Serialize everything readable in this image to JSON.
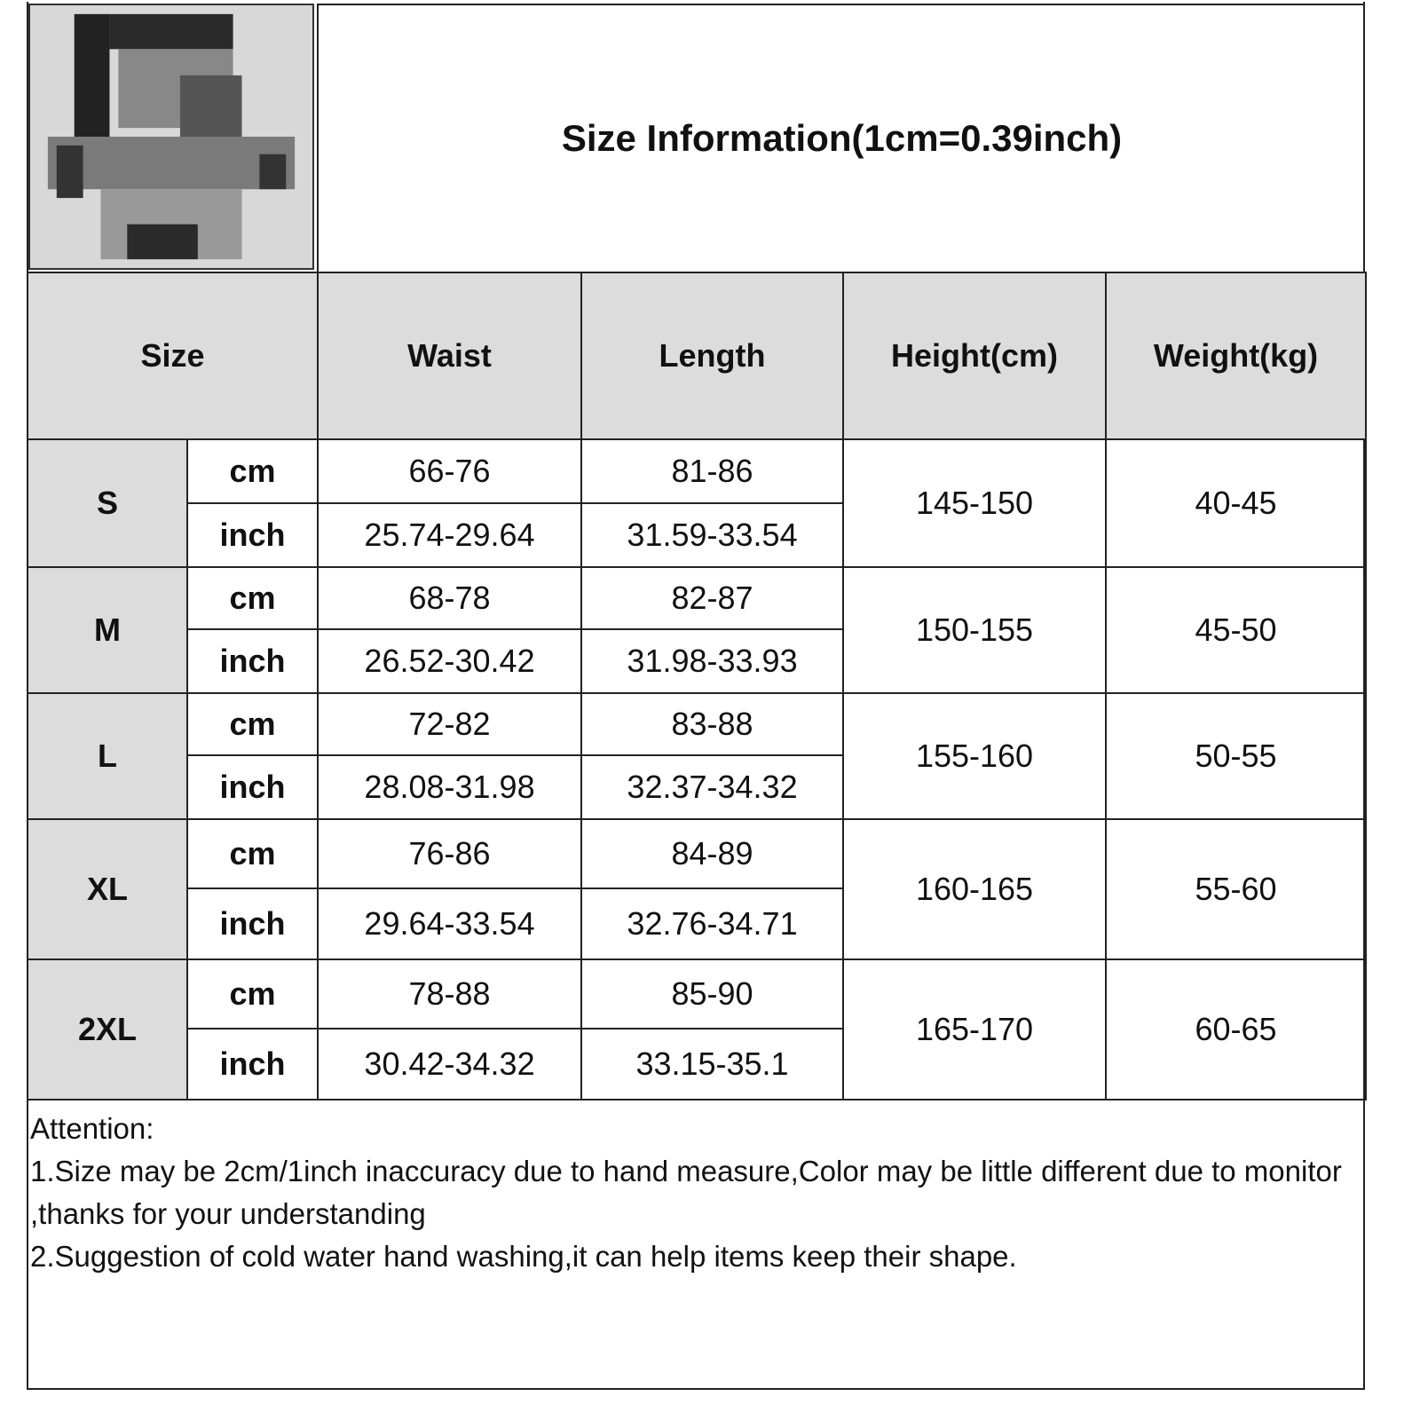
{
  "title": "Size Information(1cm=0.39inch)",
  "headers": [
    "Size",
    "Waist",
    "Length",
    "Height(cm)",
    "Weight(kg)"
  ],
  "rows": [
    {
      "size": "S",
      "cm": {
        "unit": "cm",
        "waist": "66-76",
        "length": "81-86"
      },
      "inch": {
        "unit": "inch",
        "waist": "25.74-29.64",
        "length": "31.59-33.54"
      },
      "height": "145-150",
      "weight": "40-45"
    },
    {
      "size": "M",
      "cm": {
        "unit": "cm",
        "waist": "68-78",
        "length": "82-87"
      },
      "inch": {
        "unit": "inch",
        "waist": "26.52-30.42",
        "length": "31.98-33.93"
      },
      "height": "150-155",
      "weight": "45-50"
    },
    {
      "size": "L",
      "cm": {
        "unit": "cm",
        "waist": "72-82",
        "length": "83-88"
      },
      "inch": {
        "unit": "inch",
        "waist": "28.08-31.98",
        "length": "32.37-34.32"
      },
      "height": "155-160",
      "weight": "50-55"
    },
    {
      "size": "XL",
      "cm": {
        "unit": "cm",
        "waist": "76-86",
        "length": "84-89"
      },
      "inch": {
        "unit": "inch",
        "waist": "29.64-33.54",
        "length": "32.76-34.71"
      },
      "height": "160-165",
      "weight": "55-60"
    },
    {
      "size": "2XL",
      "cm": {
        "unit": "cm",
        "waist": "78-88",
        "length": "85-90"
      },
      "inch": {
        "unit": "inch",
        "waist": "30.42-34.32",
        "length": "33.15-35.1"
      },
      "height": "165-170",
      "weight": "60-65"
    }
  ],
  "attention": {
    "heading": "Attention:",
    "note1": "1.Size may be 2cm/1inch inaccuracy due to hand measure,Color may be little different due to monitor ,thanks for your understanding",
    "note2": "2.Suggestion of cold water hand washing,it can help items keep their shape."
  }
}
